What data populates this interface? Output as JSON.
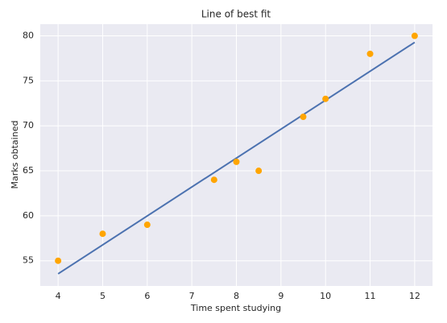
{
  "chart_data": {
    "type": "scatter",
    "title": "Line of best fit",
    "x_label": "Time spent studying",
    "y_label": "Marks obtained",
    "points": {
      "color": "#ffa500",
      "x": [
        4,
        5,
        6,
        7.5,
        8,
        8.5,
        9.5,
        10,
        11,
        12
      ],
      "values": [
        55,
        58,
        59,
        64,
        66,
        65,
        71,
        73,
        78,
        80
      ]
    },
    "fit_line": {
      "color": "#4c72b0",
      "x": [
        4,
        12
      ],
      "values": [
        53.55,
        79.28
      ]
    },
    "xlim": [
      3.6,
      12.4
    ],
    "ylim": [
      52.2,
      81.3
    ],
    "xticks": [
      4,
      5,
      6,
      7,
      8,
      9,
      10,
      11,
      12
    ],
    "yticks": [
      55,
      60,
      65,
      70,
      75,
      80
    ],
    "grid": true
  }
}
